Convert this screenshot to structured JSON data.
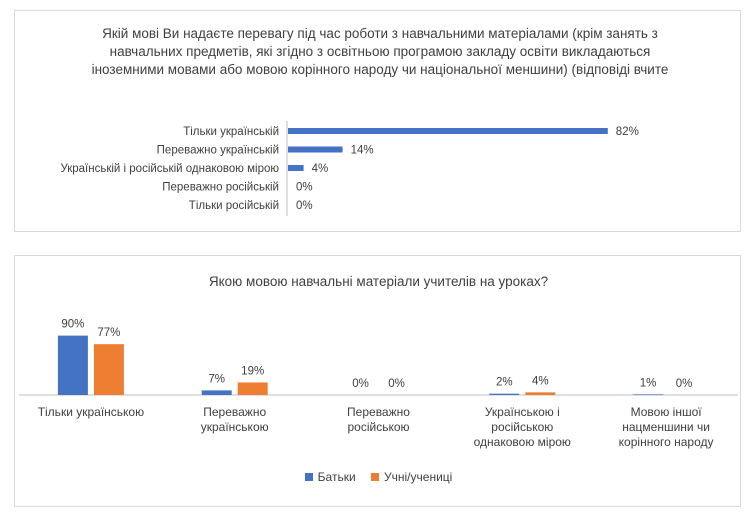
{
  "chart_data": [
    {
      "type": "bar",
      "orientation": "horizontal",
      "title": "Якій мові Ви надаєте перевагу під час роботи з навчальними матеріалами (крім занять з навчальних предметів, які згідно з освітньою програмою закладу освіти викладаються іноземними мовами або мовою корінного народу чи національної меншини) (відповіді вчите",
      "categories": [
        "Тільки українській",
        "Переважно українській",
        "Українській і російській однаковою мірою",
        "Переважно російській",
        "Тільки російській"
      ],
      "values": [
        82,
        14,
        4,
        0,
        0
      ],
      "value_labels": [
        "82%",
        "14%",
        "4%",
        "0%",
        "0%"
      ],
      "xlim": [
        0,
        100
      ],
      "color": "#4472C4",
      "grid": false
    },
    {
      "type": "bar",
      "orientation": "vertical",
      "title": "Якою мовою навчальні матеріали учителів на уроках?",
      "categories": [
        [
          "Тільки українською"
        ],
        [
          "Переважно",
          "українською"
        ],
        [
          "Переважно",
          "російською"
        ],
        [
          "Українською і",
          "російською",
          "однаковою мірою"
        ],
        [
          "Мовою іншої",
          "нацменшини чи",
          "корінного народу"
        ]
      ],
      "series": [
        {
          "name": "Батьки",
          "color": "#4472C4",
          "values": [
            90,
            7,
            0,
            2,
            1
          ],
          "value_labels": [
            "90%",
            "7%",
            "0%",
            "2%",
            "1%"
          ]
        },
        {
          "name": "Учні/учениці",
          "color": "#ED7D31",
          "values": [
            77,
            19,
            0,
            4,
            0
          ],
          "value_labels": [
            "77%",
            "19%",
            "0%",
            "4%",
            "0%"
          ]
        }
      ],
      "ylim": [
        0,
        100
      ],
      "legend": "bottom",
      "grid": false
    }
  ]
}
